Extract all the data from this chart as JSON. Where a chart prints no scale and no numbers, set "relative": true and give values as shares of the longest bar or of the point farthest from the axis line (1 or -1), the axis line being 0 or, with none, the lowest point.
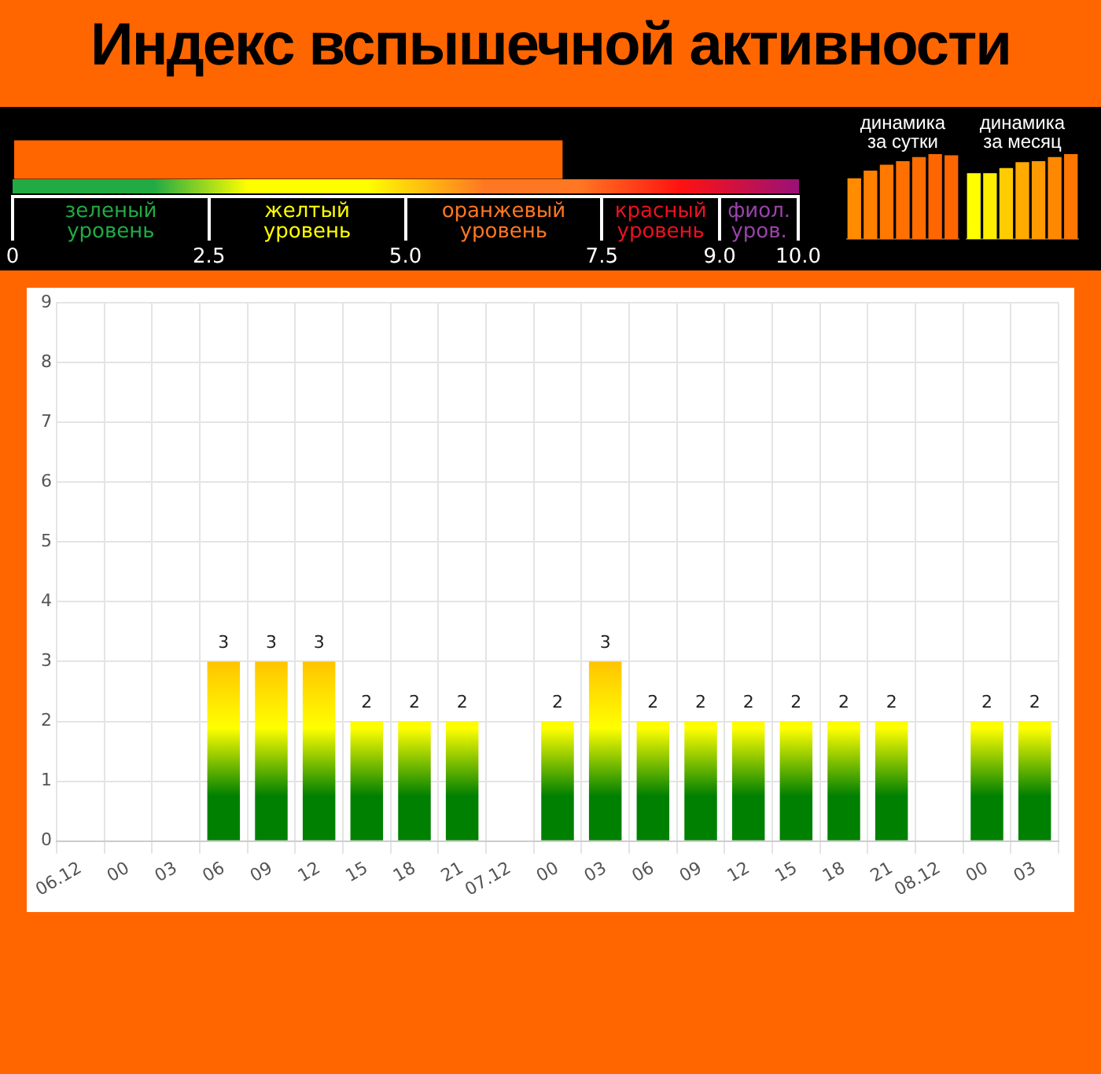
{
  "chart_data": [
    {
      "type": "bar",
      "title": "Индекс вспышечной активности",
      "orientation": "horizontal",
      "categories": [
        null
      ],
      "values": [
        7.0
      ],
      "color": "#ff6600",
      "xlim": [
        0,
        10
      ],
      "xticks": [
        0,
        2.5,
        {
          "value": 5,
          "label": "5.0"
        },
        {
          "value": 7.5,
          "label": "7.5"
        },
        {
          "value": 9,
          "label": "9.0"
        },
        {
          "value": 10,
          "label": "10.0"
        }
      ],
      "annotations": [
        "зеленый уровень",
        "желтый уровень",
        "оранжевый уровень",
        "красный уровень",
        "фиол. уров."
      ]
    },
    {
      "type": "bar",
      "title": "динамика за сутки",
      "relative": true,
      "categories": [
        null,
        null,
        null,
        null,
        null,
        null,
        null
      ],
      "values": [
        0.71,
        0.8,
        0.87,
        0.91,
        0.96,
        1,
        0.98
      ],
      "colors": [
        "#ff8c00",
        "#ff8000",
        "#ff7800",
        "#ff7000",
        "#ff6c00",
        "#ff6600",
        "#ff6600"
      ]
    },
    {
      "type": "bar",
      "title": "динамика за месяц",
      "relative": true,
      "categories": [
        null,
        null,
        null,
        null,
        null,
        null,
        null
      ],
      "values": [
        0.77,
        0.77,
        0.83,
        0.9,
        0.91,
        0.96,
        1
      ],
      "colors": [
        "#ffff00",
        "#ffee00",
        "#ffcc00",
        "#ffaa00",
        "#ff9900",
        "#ff8800",
        "#ff7700"
      ]
    },
    {
      "type": "bar",
      "categories": [
        "06.12",
        "00",
        "03",
        "06",
        "09",
        "12",
        "15",
        "18",
        "21",
        "07.12",
        "00",
        "03",
        "06",
        "09",
        "12",
        "15",
        "18",
        "21",
        "08.12",
        "00",
        "03"
      ],
      "values": [
        0,
        0,
        0,
        3,
        3,
        3,
        2,
        2,
        2,
        0,
        2,
        3,
        2,
        2,
        2,
        2,
        2,
        2,
        0,
        2,
        2
      ],
      "value_labels": [
        null,
        null,
        null,
        "3",
        "3",
        "3",
        "2",
        "2",
        "2",
        null,
        "2",
        "3",
        "2",
        "2",
        "2",
        "2",
        "2",
        "2",
        null,
        "2",
        "2"
      ],
      "color": "#008000",
      "ylim": [
        0,
        9
      ],
      "yticks": [
        0,
        1,
        2,
        3,
        4,
        5,
        6,
        7,
        8,
        9
      ],
      "grid": true
    }
  ]
}
